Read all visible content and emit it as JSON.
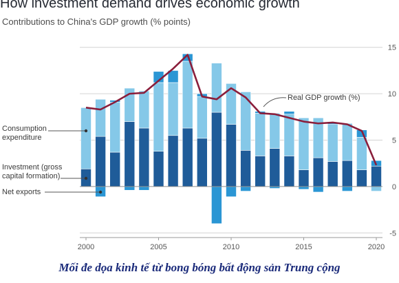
{
  "chart_data": {
    "type": "bar",
    "title": "How investment demand drives economic growth",
    "subtitle": "Contributions to China's GDP growth (% points)",
    "x": [
      2000,
      2001,
      2002,
      2003,
      2004,
      2005,
      2006,
      2007,
      2008,
      2009,
      2010,
      2011,
      2012,
      2013,
      2014,
      2015,
      2016,
      2017,
      2018,
      2019,
      2020
    ],
    "x_ticks": [
      2000,
      2005,
      2010,
      2015,
      2020
    ],
    "y_ticks": [
      -5,
      0,
      5,
      10,
      15
    ],
    "ylim": [
      -5.5,
      15.5
    ],
    "stacked": true,
    "series": [
      {
        "name": "Investment (gross capital formation)",
        "color": "#1f5c99",
        "values": [
          1.9,
          5.4,
          3.7,
          7.0,
          6.3,
          3.8,
          5.5,
          6.3,
          5.2,
          8.0,
          6.7,
          3.9,
          3.3,
          4.1,
          3.3,
          1.8,
          3.1,
          2.7,
          2.8,
          1.8,
          2.2
        ]
      },
      {
        "name": "Consumption expenditure",
        "color": "#85c8e8",
        "values": [
          6.6,
          4.0,
          5.4,
          3.6,
          4.0,
          7.4,
          5.7,
          7.2,
          4.5,
          5.3,
          4.4,
          6.3,
          4.6,
          3.8,
          4.5,
          5.6,
          4.3,
          4.0,
          4.0,
          3.5,
          -0.5
        ]
      },
      {
        "name": "Net exports",
        "color": "#2b96d4",
        "values": [
          0.0,
          -1.1,
          0.2,
          -0.4,
          -0.4,
          1.2,
          1.3,
          0.8,
          0.3,
          -4.0,
          -1.1,
          -0.5,
          0.2,
          -0.2,
          0.3,
          -0.3,
          -0.6,
          0.2,
          -0.5,
          0.8,
          0.6
        ]
      }
    ],
    "line": {
      "name": "Real GDP growth (%)",
      "color": "#8a1e3b",
      "values": [
        8.5,
        8.3,
        9.1,
        10.0,
        10.1,
        11.4,
        12.7,
        14.2,
        9.7,
        9.4,
        10.6,
        9.6,
        7.9,
        7.8,
        7.4,
        7.0,
        6.8,
        6.9,
        6.7,
        6.0,
        2.3
      ]
    },
    "annotations": {
      "consumption": "Consumption expenditure",
      "investment": "Investment (gross capital formation)",
      "net_exports": "Net exports",
      "gdp": "Real GDP growth (%)"
    },
    "grid": true
  },
  "caption": "Mối đe dọa kinh tế từ bong bóng bất động sản Trung cộng"
}
